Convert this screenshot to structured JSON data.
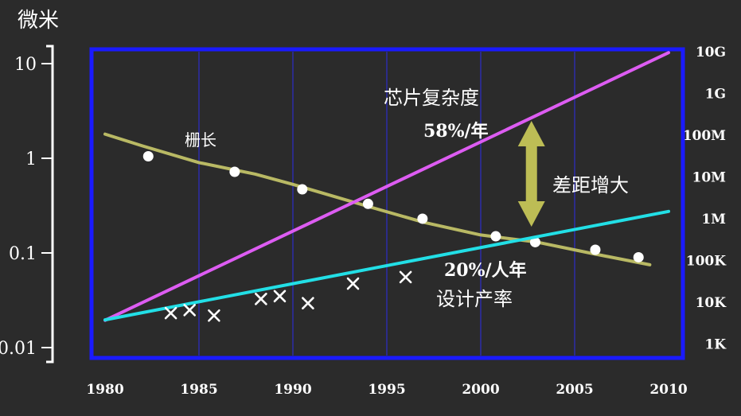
{
  "chart_data": {
    "type": "line",
    "ylabel_left": "微米",
    "x_ticks": [
      "1980",
      "1985",
      "1990",
      "1995",
      "2000",
      "2005",
      "2010"
    ],
    "xlim": [
      1980,
      2010
    ],
    "left_axis": {
      "scale": "log",
      "ylim": [
        0.01,
        10
      ],
      "ticks": [
        {
          "label": "10",
          "value": 10
        },
        {
          "label": "1",
          "value": 1
        },
        {
          "label": "0.1",
          "value": 0.1
        },
        {
          "label": "0.01",
          "value": 0.01
        }
      ]
    },
    "right_axis": {
      "scale": "log",
      "ylim": [
        1000,
        10000000000
      ],
      "ticks": [
        {
          "label": "10G",
          "value": 10000000000
        },
        {
          "label": "1G",
          "value": 1000000000
        },
        {
          "label": "100M",
          "value": 100000000
        },
        {
          "label": "10M",
          "value": 10000000
        },
        {
          "label": "1M",
          "value": 1000000
        },
        {
          "label": "100K",
          "value": 100000
        },
        {
          "label": "10K",
          "value": 10000
        },
        {
          "label": "1K",
          "value": 1000
        }
      ]
    },
    "series": [
      {
        "axis": "left",
        "color": "#b9b964",
        "line": [
          [
            1980,
            1.8
          ],
          [
            1982,
            1.35
          ],
          [
            1985,
            0.9
          ],
          [
            1988,
            0.68
          ],
          [
            1990,
            0.53
          ],
          [
            1994,
            0.31
          ],
          [
            1997,
            0.21
          ],
          [
            2000,
            0.155
          ],
          [
            2003,
            0.13
          ],
          [
            2006,
            0.098
          ],
          [
            2009,
            0.075
          ]
        ],
        "markers": "circle",
        "points": [
          [
            1982.3,
            1.05
          ],
          [
            1986.9,
            0.72
          ],
          [
            1990.5,
            0.47
          ],
          [
            1994.0,
            0.33
          ],
          [
            1996.9,
            0.23
          ],
          [
            2000.8,
            0.15
          ],
          [
            2002.9,
            0.13
          ],
          [
            2006.1,
            0.108
          ],
          [
            2008.4,
            0.09
          ]
        ]
      },
      {
        "axis": "right",
        "color": "#dd5cf2",
        "line": [
          [
            1980,
            3700
          ],
          [
            2010,
            9500000000
          ]
        ]
      },
      {
        "axis": "right",
        "color": "#22dfe6",
        "line": [
          [
            1980,
            3800
          ],
          [
            2010,
            1500000
          ]
        ],
        "markers": "cross",
        "points": [
          [
            1983.5,
            5500
          ],
          [
            1984.5,
            6500
          ],
          [
            1985.8,
            4800
          ],
          [
            1988.3,
            12000
          ],
          [
            1989.3,
            14000
          ],
          [
            1990.8,
            9500
          ],
          [
            1993.2,
            28000
          ],
          [
            1996.0,
            40000
          ]
        ]
      }
    ],
    "annotations": [
      {
        "text": "栅长"
      },
      {
        "text": "芯片复杂度"
      },
      {
        "text": "58%/年"
      },
      {
        "text": "差距增大"
      },
      {
        "text": "20%/人年"
      },
      {
        "text": "设计产率"
      }
    ],
    "grid": "vertical",
    "colors": {
      "frame": "#1a1aff",
      "plot_bg": "#2b2b2b",
      "arrow": "#bdbd55"
    }
  }
}
